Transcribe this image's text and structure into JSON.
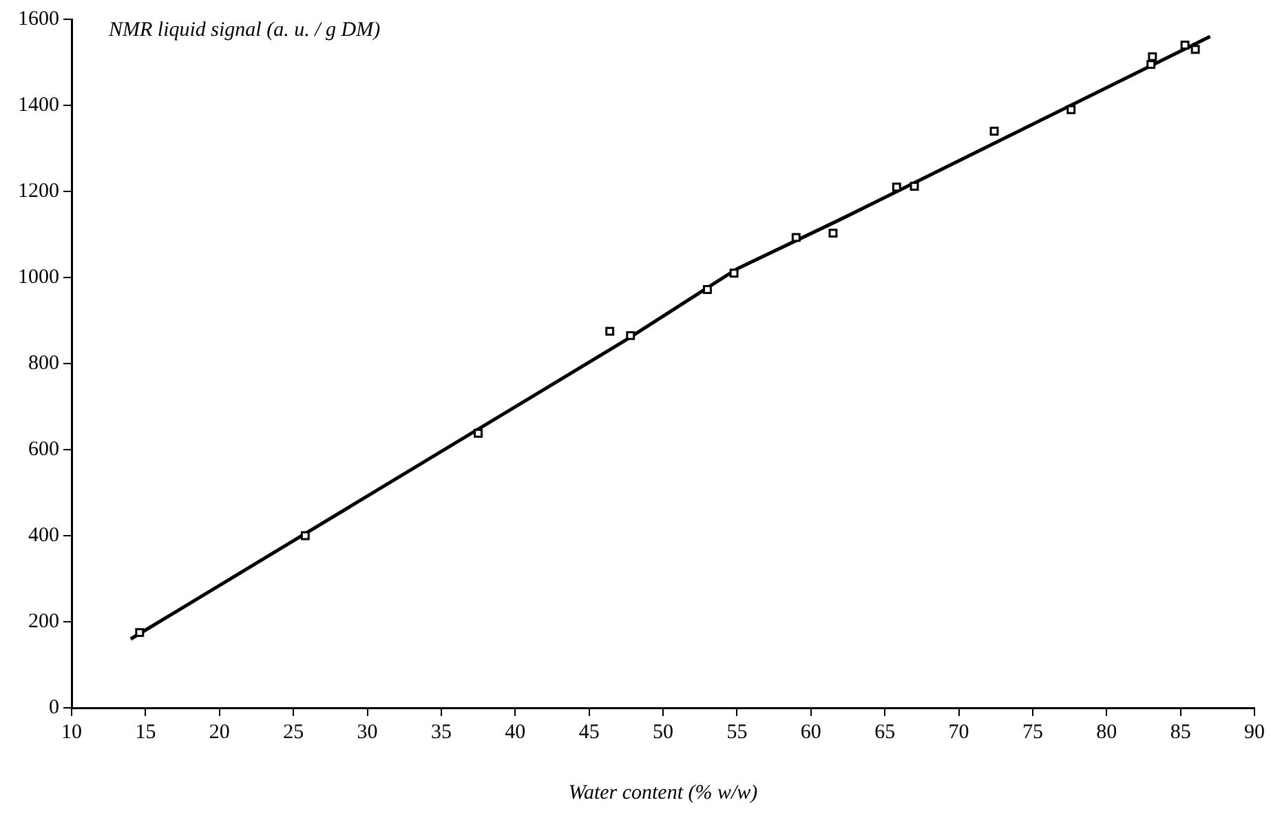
{
  "chart_data": {
    "type": "scatter",
    "xlabel": "Water content (% w/w)",
    "ylabel": "NMR liquid signal (a. u. / g DM)",
    "xlim": [
      10,
      90
    ],
    "xticks": [
      10,
      15,
      20,
      25,
      30,
      35,
      40,
      45,
      50,
      55,
      60,
      65,
      70,
      75,
      80,
      85,
      90
    ],
    "ylim": [
      0,
      1600
    ],
    "yticks": [
      0,
      200,
      400,
      600,
      800,
      1000,
      1200,
      1400,
      1600
    ],
    "grid": false,
    "legend": false,
    "series": [
      {
        "type": "scatter",
        "color": "#000000",
        "marker": "square",
        "x": [
          14.6,
          25.8,
          37.5,
          46.4,
          47.8,
          53,
          54.8,
          59,
          61.5,
          65.8,
          67,
          72.4,
          77.6,
          83,
          83.1,
          85.3,
          86
        ],
        "values": [
          175,
          400,
          638,
          875,
          865,
          972,
          1010,
          1093,
          1103,
          1210,
          1212,
          1340,
          1390,
          1495,
          1513,
          1540,
          1530
        ]
      },
      {
        "type": "line",
        "color": "#000000",
        "line_style": "solid",
        "x": [
          14,
          47.5,
          55,
          62,
          87
        ],
        "values": [
          160,
          855,
          1020,
          1135,
          1560
        ]
      }
    ]
  }
}
